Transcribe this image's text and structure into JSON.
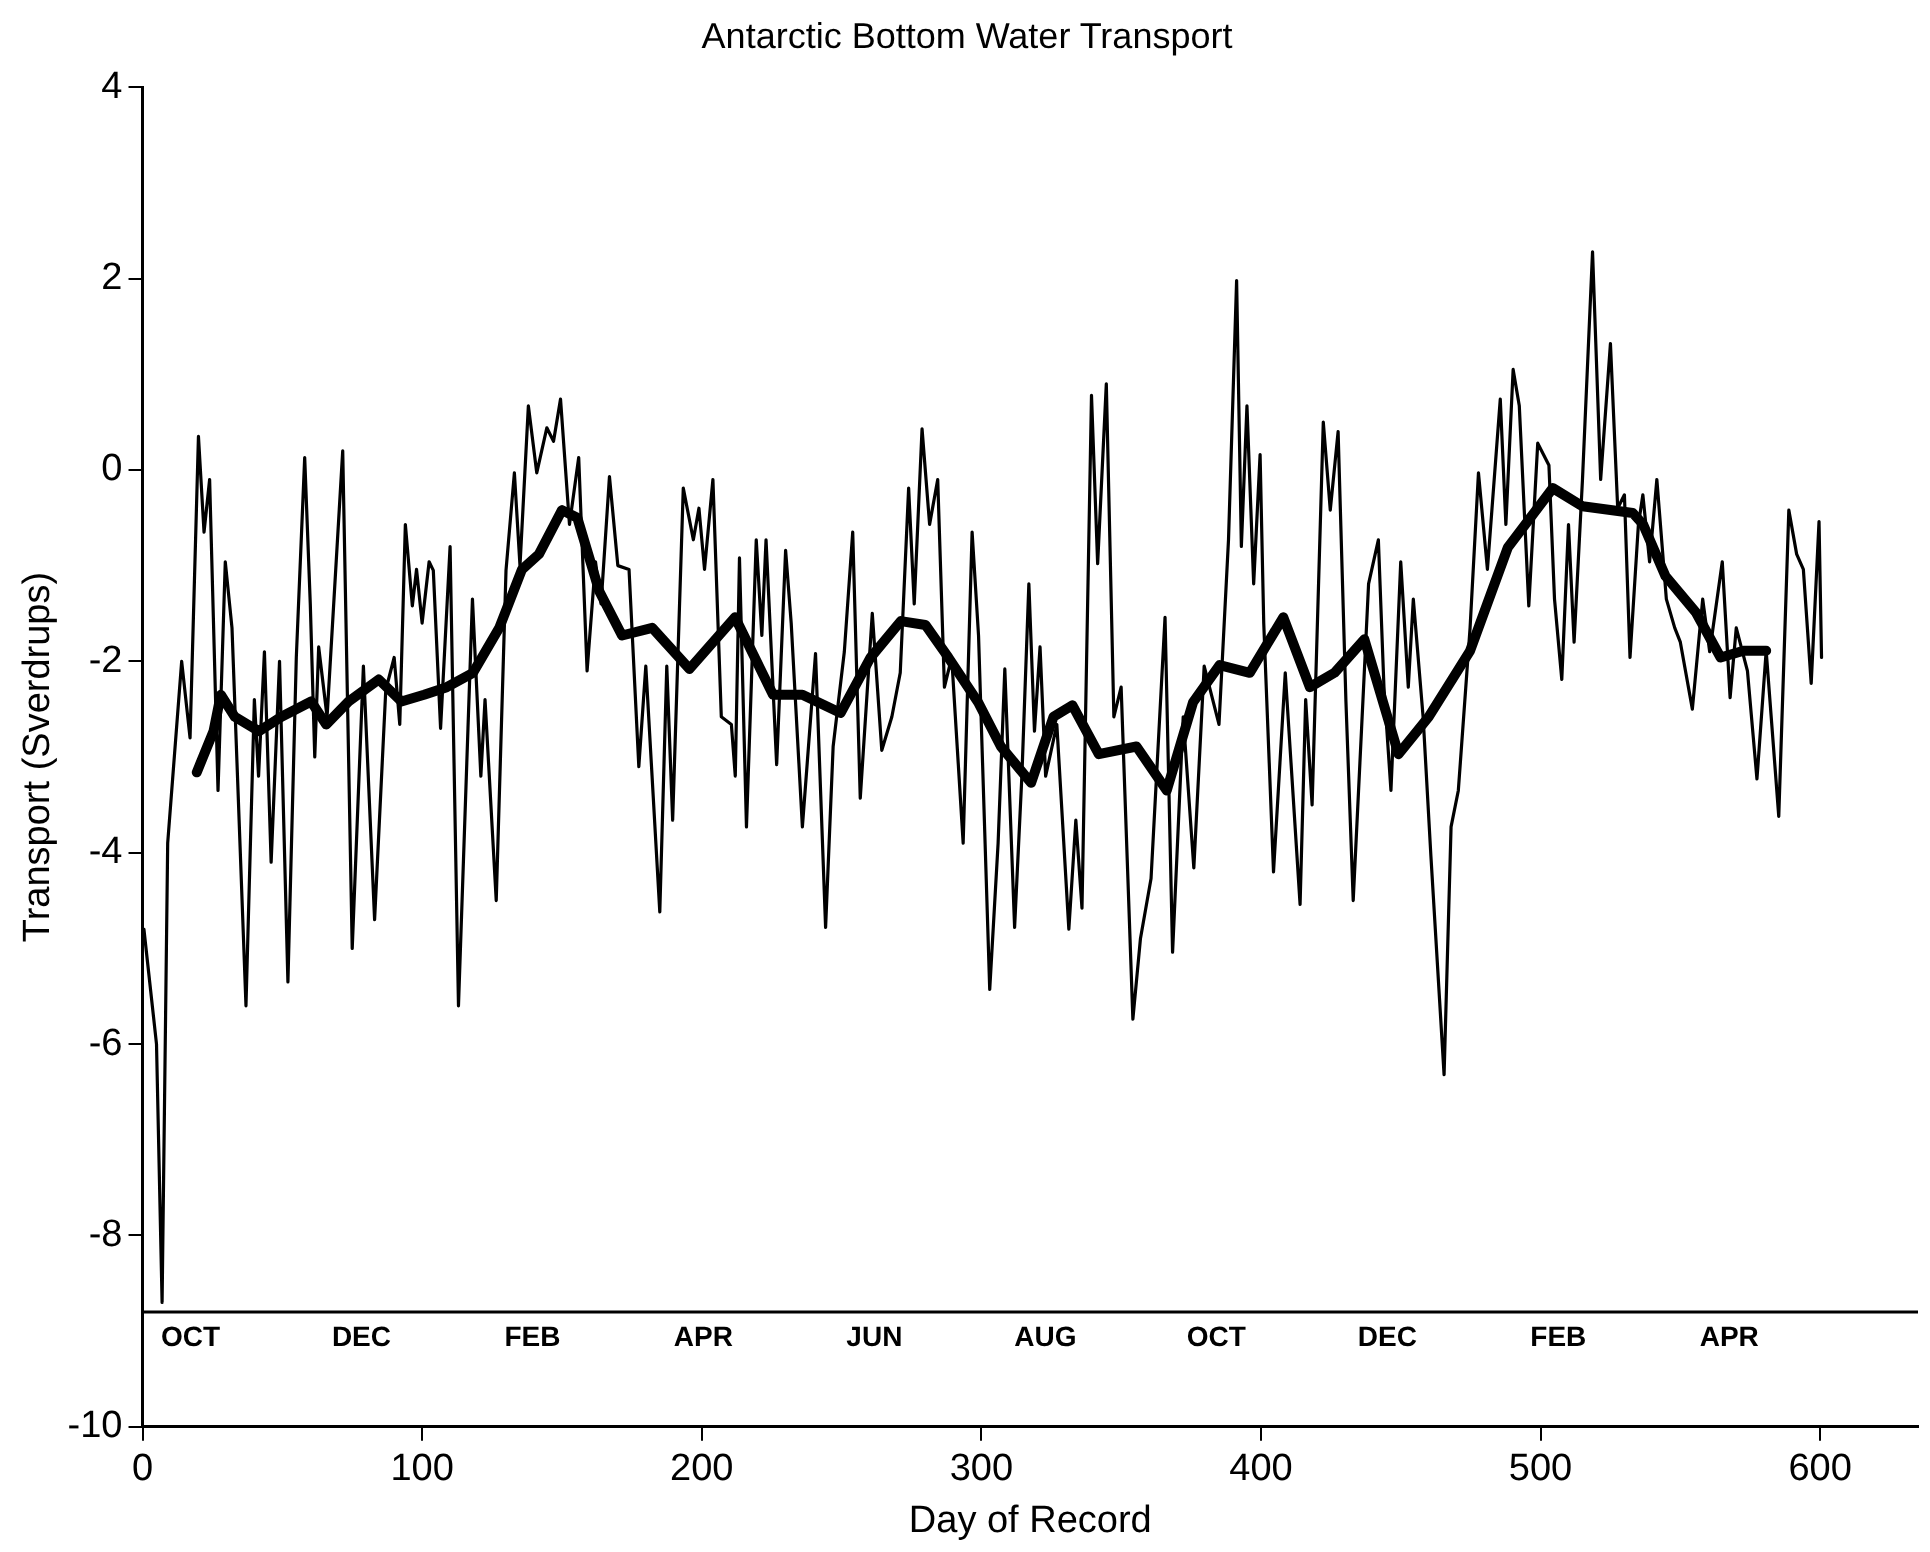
{
  "chart_data": {
    "type": "line",
    "title": "Antarctic Bottom Water Transport",
    "xlabel": "Day of Record",
    "ylabel": "Transport (Sverdrups)",
    "xlim": [
      0,
      635
    ],
    "xticks": [
      0,
      100,
      200,
      300,
      400,
      500,
      600
    ],
    "ylim": [
      -10,
      4
    ],
    "yticks": [
      -10,
      -8,
      -6,
      -4,
      -2,
      0,
      2,
      4
    ],
    "grid": false,
    "legend": false,
    "marker": "none",
    "line_style": "solid",
    "series": [
      {
        "color": "#000000",
        "x": [
          0.5,
          5,
          7,
          9,
          14,
          17,
          20,
          22,
          24,
          27,
          29.6,
          32,
          37,
          40,
          41.5,
          43.6,
          46,
          49,
          52,
          55,
          58,
          60,
          61.6,
          63,
          66,
          71.6,
          75,
          79,
          83,
          87,
          90,
          92,
          94,
          96.5,
          98,
          100,
          102.5,
          104,
          106.6,
          110,
          113,
          116.4,
          118,
          121,
          122.5,
          126.5,
          130,
          133,
          135,
          138,
          141,
          144.6,
          147,
          149.5,
          152.7,
          156,
          159,
          162,
          164,
          167,
          170,
          174,
          177.5,
          180,
          185,
          187.5,
          189.6,
          193.4,
          197,
          199,
          201,
          204,
          207,
          210.6,
          212,
          213.5,
          216,
          219.5,
          221.5,
          223,
          226.8,
          230,
          232,
          236,
          240.7,
          244.3,
          247,
          251,
          254,
          256.7,
          261,
          264.4,
          268,
          271,
          274,
          276,
          278.8,
          281.5,
          284.4,
          286.8,
          289.4,
          293.5,
          296.7,
          299,
          303,
          306,
          308.4,
          311.9,
          314.5,
          317,
          319,
          321,
          323,
          327,
          331.3,
          333.8,
          336,
          339.4,
          341.6,
          344.7,
          347.4,
          350,
          354.2,
          356.9,
          360.7,
          365.7,
          368.4,
          372.2,
          376,
          379.7,
          385,
          388.4,
          391.3,
          393,
          395,
          397.4,
          399.7,
          401,
          404.5,
          408.7,
          414,
          416,
          418.3,
          422.3,
          424.8,
          427.6,
          430.4,
          433,
          436,
          438.5,
          442,
          444,
          446.5,
          450,
          452.7,
          454.5,
          458,
          460.8,
          465.5,
          468,
          470.6,
          474.8,
          477.8,
          481,
          485.6,
          487.6,
          490.2,
          492.4,
          495.8,
          499,
          503,
          505,
          507.6,
          510,
          512,
          515,
          518.6,
          521.5,
          525,
          527.6,
          530,
          532,
          535,
          536.6,
          539,
          541.6,
          545,
          548,
          550,
          554.3,
          558,
          560.5,
          565,
          567.8,
          570,
          574,
          577.4,
          580.7,
          585.2,
          588.8,
          591.6,
          594,
          596.8,
          599.6,
          600.5
        ],
        "values": [
          -4.8,
          -6.0,
          -8.7,
          -3.9,
          -2.0,
          -2.8,
          0.35,
          -0.65,
          -0.1,
          -3.35,
          -0.96,
          -1.65,
          -5.6,
          -2.4,
          -3.2,
          -1.9,
          -4.1,
          -2.0,
          -5.35,
          -1.96,
          0.13,
          -1.4,
          -3.0,
          -1.85,
          -2.58,
          0.2,
          -5.0,
          -2.05,
          -4.7,
          -2.3,
          -1.96,
          -2.66,
          -0.57,
          -1.42,
          -1.04,
          -1.6,
          -0.96,
          -1.05,
          -2.7,
          -0.8,
          -5.6,
          -2.7,
          -1.35,
          -3.2,
          -2.4,
          -4.5,
          -1.05,
          -0.03,
          -1.0,
          0.67,
          -0.03,
          0.44,
          0.3,
          0.74,
          -0.57,
          0.13,
          -2.1,
          -0.96,
          -1.4,
          -0.07,
          -1.0,
          -1.04,
          -3.1,
          -2.05,
          -4.62,
          -2.05,
          -3.66,
          -0.19,
          -0.73,
          -0.4,
          -1.04,
          -0.1,
          -2.58,
          -2.66,
          -3.2,
          -0.92,
          -3.73,
          -0.73,
          -1.73,
          -0.73,
          -3.08,
          -0.84,
          -1.6,
          -3.73,
          -1.92,
          -4.78,
          -2.89,
          -1.9,
          -0.65,
          -3.43,
          -1.5,
          -2.93,
          -2.58,
          -2.12,
          -0.19,
          -1.4,
          0.43,
          -0.57,
          -0.1,
          -2.27,
          -1.96,
          -3.9,
          -0.65,
          -1.73,
          -5.43,
          -3.9,
          -2.08,
          -4.78,
          -3.2,
          -1.19,
          -2.73,
          -1.85,
          -3.2,
          -2.66,
          -4.8,
          -3.66,
          -4.58,
          0.78,
          -0.98,
          0.9,
          -2.58,
          -2.27,
          -5.74,
          -4.9,
          -4.27,
          -1.54,
          -5.04,
          -2.58,
          -4.16,
          -2.05,
          -2.66,
          -0.73,
          1.98,
          -0.8,
          0.67,
          -1.19,
          0.16,
          -1.6,
          -4.2,
          -2.12,
          -4.54,
          -2.4,
          -3.5,
          0.5,
          -0.42,
          0.4,
          -2.42,
          -4.5,
          -2.7,
          -1.19,
          -0.73,
          -2.27,
          -3.35,
          -0.96,
          -2.27,
          -1.35,
          -2.58,
          -4.04,
          -6.32,
          -3.73,
          -3.35,
          -1.65,
          -0.03,
          -1.04,
          0.74,
          -0.57,
          1.05,
          0.67,
          -1.42,
          0.28,
          0.05,
          -1.35,
          -2.19,
          -0.57,
          -1.8,
          -0.1,
          2.28,
          -0.1,
          1.32,
          -0.4,
          -0.26,
          -1.96,
          -0.57,
          -0.26,
          -0.96,
          -0.1,
          -1.35,
          -1.65,
          -1.8,
          -2.5,
          -1.35,
          -1.9,
          -0.96,
          -2.38,
          -1.65,
          -2.1,
          -3.23,
          -1.89,
          -3.62,
          -0.42,
          -0.88,
          -1.04,
          -2.23,
          -0.54,
          -1.96
        ]
      },
      {
        "color": "#000000",
        "x": [
          19.4,
          25.4,
          28,
          33,
          41.6,
          49.7,
          60.3,
          65.7,
          73.7,
          84.5,
          92.6,
          100.7,
          108.8,
          118.2,
          127.6,
          135.7,
          141.8,
          150,
          155.5,
          163.4,
          171.5,
          182.3,
          195.6,
          211.9,
          225.5,
          236,
          249.7,
          260.4,
          271.2,
          280,
          288.2,
          298.9,
          307,
          317.8,
          325.8,
          332.6,
          342,
          355.5,
          366.3,
          375.7,
          385.2,
          396,
          408,
          417.5,
          426.3,
          437,
          449.2,
          460,
          474.8,
          488.3,
          504.4,
          515,
          533,
          536.7,
          544.7,
          555.6,
          564.4,
          572.6,
          580.7
        ],
        "values": [
          -3.16,
          -2.73,
          -2.35,
          -2.58,
          -2.73,
          -2.58,
          -2.42,
          -2.66,
          -2.42,
          -2.19,
          -2.42,
          -2.35,
          -2.27,
          -2.12,
          -1.65,
          -1.04,
          -0.88,
          -0.42,
          -0.5,
          -1.27,
          -1.73,
          -1.65,
          -2.08,
          -1.54,
          -2.35,
          -2.35,
          -2.54,
          -1.96,
          -1.58,
          -1.62,
          -1.96,
          -2.43,
          -2.89,
          -3.27,
          -2.58,
          -2.46,
          -2.97,
          -2.89,
          -3.35,
          -2.43,
          -2.04,
          -2.12,
          -1.54,
          -2.27,
          -2.12,
          -1.77,
          -2.97,
          -2.58,
          -1.89,
          -0.81,
          -0.19,
          -0.38,
          -0.45,
          -0.57,
          -1.11,
          -1.49,
          -1.96,
          -1.89,
          -1.89
        ]
      }
    ],
    "annotations": [
      "OCT",
      "DEC",
      "FEB",
      "APR",
      "JUN",
      "AUG",
      "OCT",
      "DEC",
      "FEB",
      "APR"
    ],
    "ref_lines": [
      {
        "axis": "y",
        "value": -8.8,
        "color": "#000000",
        "line_style": "solid"
      }
    ]
  }
}
